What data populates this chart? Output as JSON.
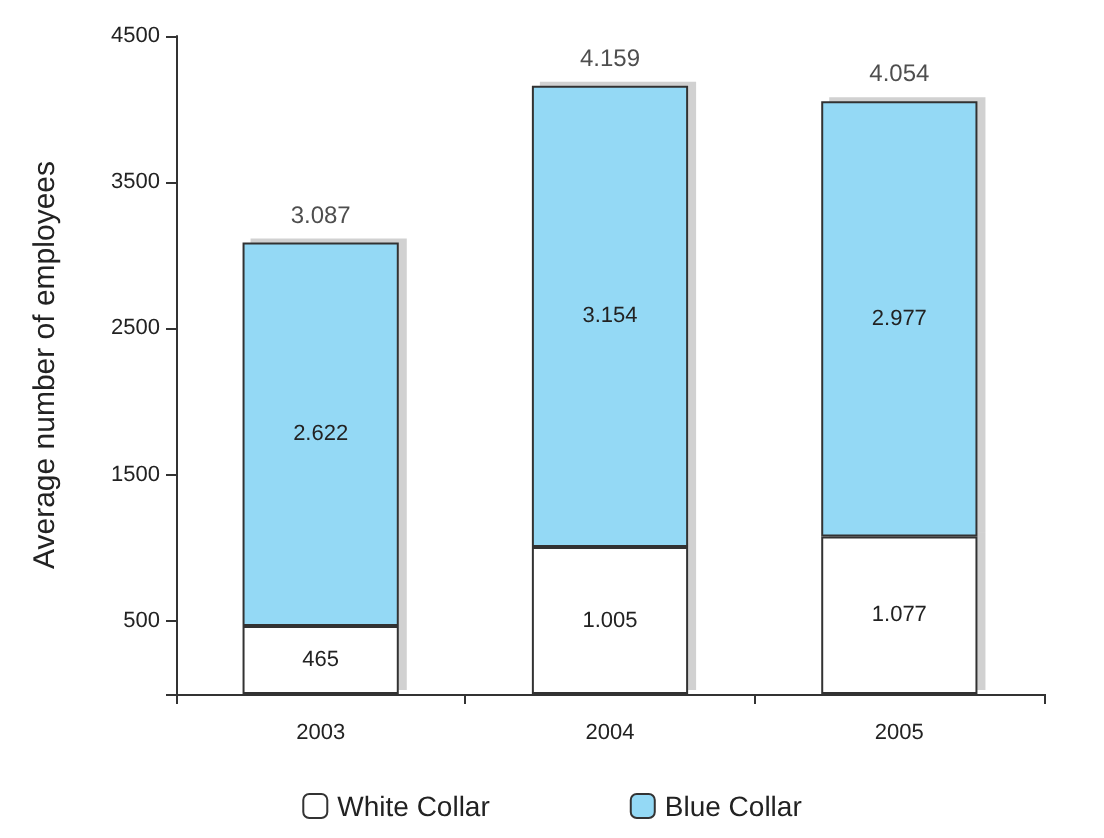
{
  "chart_data": {
    "type": "bar",
    "stacked": true,
    "ylabel": "Average number of employees",
    "categories": [
      "2003",
      "2004",
      "2005"
    ],
    "series": [
      {
        "name": "White Collar",
        "color": "#ffffff",
        "values": [
          465,
          1005,
          1077
        ],
        "value_labels": [
          "465",
          "1.005",
          "1.077"
        ]
      },
      {
        "name": "Blue Collar",
        "color": "#94d9f5",
        "values": [
          2622,
          3154,
          2977
        ],
        "value_labels": [
          "2.622",
          "3.154",
          "2.977"
        ]
      }
    ],
    "totals": [
      "3.087",
      "4.159",
      "4.054"
    ],
    "ylim": [
      0,
      4500
    ],
    "yticks": [
      {
        "value": 0,
        "label": null
      },
      500,
      1500,
      2500,
      3500,
      4500
    ],
    "grid": false,
    "legend": "bottom"
  }
}
